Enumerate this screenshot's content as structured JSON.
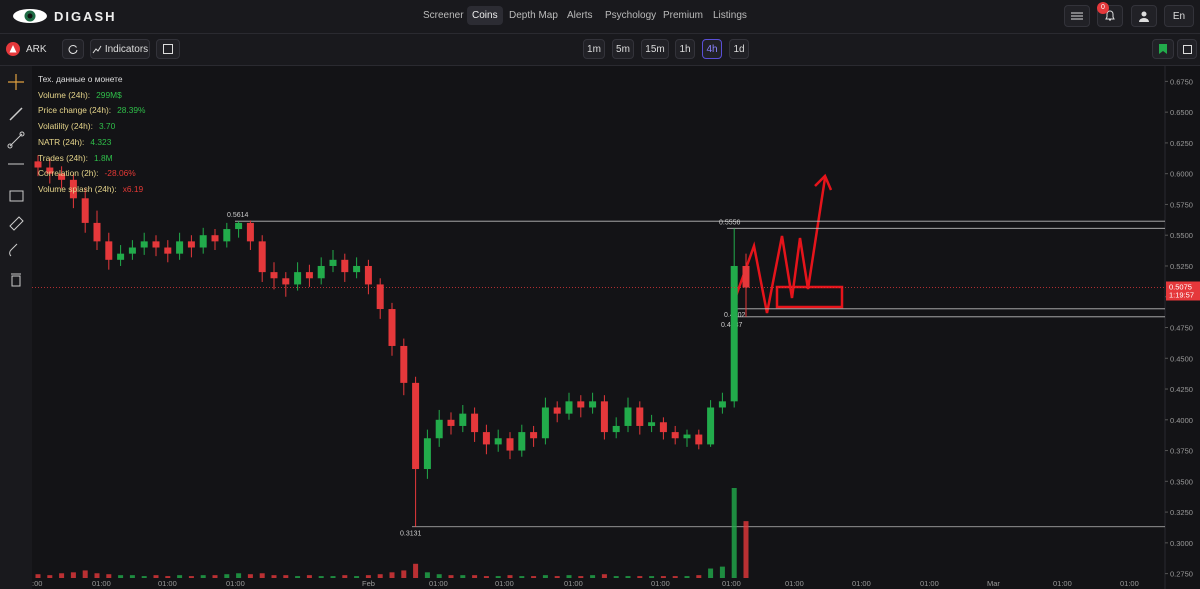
{
  "header": {
    "brand": "DIGASH",
    "nav": [
      "Screener",
      "Coins",
      "Depth Map",
      "Alerts",
      "Psychology",
      "Premium",
      "Listings"
    ],
    "active_nav": 1,
    "notifications": "0",
    "language": "En"
  },
  "toolbar": {
    "symbol": "ARK",
    "indicators": "Indicators",
    "timeframes": [
      "1m",
      "5m",
      "15m",
      "1h",
      "4h",
      "1d"
    ],
    "active_timeframe": 4
  },
  "info_panel": {
    "title": "Тех. данные о монете",
    "stats": [
      {
        "label": "Volume (24h):",
        "value": "299M$",
        "color": "#2fbf4a"
      },
      {
        "label": "Price change (24h):",
        "value": "28.39%",
        "color": "#2fbf4a"
      },
      {
        "label": "Volatility (24h):",
        "value": "3.70",
        "color": "#2fbf4a"
      },
      {
        "label": "NATR (24h):",
        "value": "4.323",
        "color": "#2fbf4a"
      },
      {
        "label": "Trades (24h):",
        "value": "1.8M",
        "color": "#2fbf4a"
      },
      {
        "label": "Correlation (2h):",
        "value": "-28.06%",
        "color": "#e53935"
      },
      {
        "label": "Volume splash (24h):",
        "value": "x6.19",
        "color": "#e53935"
      }
    ]
  },
  "chart_data": {
    "type": "candlestick",
    "up_color": "#22ab4b",
    "down_color": "#e5383b",
    "ylim": [
      0.2625,
      0.6875
    ],
    "yticks": [
      {
        "value": 0.675,
        "label": "0.6750"
      },
      {
        "value": 0.65,
        "label": "0.6500"
      },
      {
        "value": 0.625,
        "label": "0.6250"
      },
      {
        "value": 0.6,
        "label": "0.6000"
      },
      {
        "value": 0.575,
        "label": "0.5750"
      },
      {
        "value": 0.55,
        "label": "0.5500"
      },
      {
        "value": 0.525,
        "label": "0.5250"
      },
      {
        "value": 0.5,
        "label": "0.5000"
      },
      {
        "value": 0.475,
        "label": "0.4750"
      },
      {
        "value": 0.45,
        "label": "0.4500"
      },
      {
        "value": 0.425,
        "label": "0.4250"
      },
      {
        "value": 0.4,
        "label": "0.4000"
      },
      {
        "value": 0.375,
        "label": "0.3750"
      },
      {
        "value": 0.35,
        "label": "0.3500"
      },
      {
        "value": 0.325,
        "label": "0.3250"
      },
      {
        "value": 0.3,
        "label": "0.3000"
      },
      {
        "value": 0.275,
        "label": "0.2750"
      }
    ],
    "x_labels": [
      ":00",
      "01:00",
      "01:00",
      "01:00",
      "Feb",
      "01:00",
      "01:00",
      "01:00",
      "01:00",
      "01:00",
      "01:00",
      "01:00",
      "01:00",
      "Mar",
      "01:00",
      "01:00"
    ],
    "candles": [
      [
        0.61,
        0.615,
        0.598,
        0.605
      ],
      [
        0.605,
        0.612,
        0.592,
        0.6
      ],
      [
        0.6,
        0.606,
        0.588,
        0.595
      ],
      [
        0.595,
        0.6,
        0.572,
        0.58
      ],
      [
        0.58,
        0.588,
        0.552,
        0.56
      ],
      [
        0.56,
        0.57,
        0.538,
        0.545
      ],
      [
        0.545,
        0.552,
        0.522,
        0.53
      ],
      [
        0.53,
        0.542,
        0.525,
        0.535
      ],
      [
        0.535,
        0.546,
        0.53,
        0.54
      ],
      [
        0.54,
        0.552,
        0.534,
        0.545
      ],
      [
        0.545,
        0.55,
        0.533,
        0.54
      ],
      [
        0.54,
        0.546,
        0.528,
        0.535
      ],
      [
        0.535,
        0.552,
        0.53,
        0.545
      ],
      [
        0.545,
        0.55,
        0.532,
        0.54
      ],
      [
        0.54,
        0.556,
        0.535,
        0.55
      ],
      [
        0.55,
        0.555,
        0.538,
        0.545
      ],
      [
        0.545,
        0.56,
        0.54,
        0.555
      ],
      [
        0.555,
        0.5614,
        0.548,
        0.56
      ],
      [
        0.56,
        0.562,
        0.538,
        0.545
      ],
      [
        0.545,
        0.55,
        0.512,
        0.52
      ],
      [
        0.52,
        0.528,
        0.506,
        0.515
      ],
      [
        0.515,
        0.52,
        0.5,
        0.51
      ],
      [
        0.51,
        0.528,
        0.505,
        0.52
      ],
      [
        0.52,
        0.526,
        0.508,
        0.515
      ],
      [
        0.515,
        0.532,
        0.51,
        0.525
      ],
      [
        0.525,
        0.538,
        0.52,
        0.53
      ],
      [
        0.53,
        0.535,
        0.512,
        0.52
      ],
      [
        0.52,
        0.532,
        0.515,
        0.525
      ],
      [
        0.525,
        0.53,
        0.502,
        0.51
      ],
      [
        0.51,
        0.515,
        0.482,
        0.49
      ],
      [
        0.49,
        0.495,
        0.452,
        0.46
      ],
      [
        0.46,
        0.466,
        0.42,
        0.43
      ],
      [
        0.43,
        0.435,
        0.3131,
        0.36
      ],
      [
        0.36,
        0.392,
        0.352,
        0.385
      ],
      [
        0.385,
        0.408,
        0.378,
        0.4
      ],
      [
        0.4,
        0.406,
        0.388,
        0.395
      ],
      [
        0.395,
        0.412,
        0.39,
        0.405
      ],
      [
        0.405,
        0.41,
        0.382,
        0.39
      ],
      [
        0.39,
        0.396,
        0.372,
        0.38
      ],
      [
        0.38,
        0.392,
        0.374,
        0.385
      ],
      [
        0.385,
        0.39,
        0.368,
        0.375
      ],
      [
        0.375,
        0.396,
        0.37,
        0.39
      ],
      [
        0.39,
        0.395,
        0.378,
        0.385
      ],
      [
        0.385,
        0.418,
        0.38,
        0.41
      ],
      [
        0.41,
        0.415,
        0.398,
        0.405
      ],
      [
        0.405,
        0.422,
        0.4,
        0.415
      ],
      [
        0.415,
        0.42,
        0.402,
        0.41
      ],
      [
        0.41,
        0.422,
        0.405,
        0.415
      ],
      [
        0.415,
        0.42,
        0.384,
        0.39
      ],
      [
        0.39,
        0.402,
        0.385,
        0.395
      ],
      [
        0.395,
        0.418,
        0.39,
        0.41
      ],
      [
        0.41,
        0.415,
        0.388,
        0.395
      ],
      [
        0.395,
        0.404,
        0.39,
        0.398
      ],
      [
        0.398,
        0.402,
        0.384,
        0.39
      ],
      [
        0.39,
        0.395,
        0.38,
        0.385
      ],
      [
        0.385,
        0.392,
        0.378,
        0.388
      ],
      [
        0.388,
        0.392,
        0.376,
        0.38
      ],
      [
        0.38,
        0.416,
        0.378,
        0.41
      ],
      [
        0.41,
        0.422,
        0.405,
        0.415
      ],
      [
        0.415,
        0.5556,
        0.41,
        0.525
      ],
      [
        0.525,
        0.535,
        0.4837,
        0.5075
      ]
    ],
    "volumes": [
      4,
      3,
      5,
      6,
      8,
      5,
      4,
      3,
      3,
      2,
      3,
      2,
      3,
      2,
      3,
      3,
      4,
      5,
      4,
      5,
      3,
      3,
      2,
      3,
      2,
      2,
      3,
      2,
      3,
      4,
      6,
      8,
      15,
      6,
      4,
      3,
      3,
      3,
      2,
      2,
      3,
      2,
      2,
      3,
      2,
      3,
      2,
      3,
      4,
      2,
      2,
      2,
      2,
      2,
      2,
      2,
      3,
      10,
      12,
      95,
      60
    ],
    "levels": [
      {
        "value": 0.5614,
        "label": "0.5614"
      },
      {
        "value": 0.5556,
        "label": "0.5556"
      },
      {
        "value": 0.4902,
        "label": "0.4902"
      },
      {
        "value": 0.4837,
        "label": "0.4837"
      },
      {
        "value": 0.3131,
        "label": "0.3131"
      }
    ],
    "price": {
      "value": 0.5075,
      "label": "0.5075"
    },
    "countdown": "1:19:57"
  }
}
